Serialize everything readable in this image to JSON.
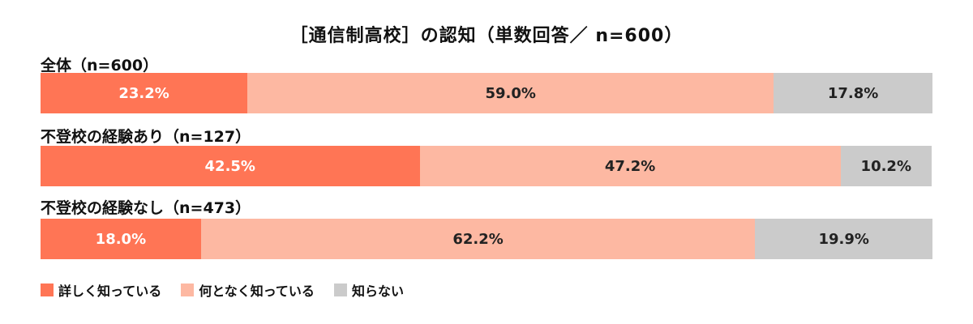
{
  "chart_data": {
    "type": "bar",
    "orientation": "horizontal-stacked-100",
    "title": "［通信制高校］の認知（単数回答／ n=600）",
    "categories": [
      "全体（n=600）",
      "不登校の経験あり（n=127）",
      "不登校の経験なし（n=473）"
    ],
    "series": [
      {
        "name": "詳しく知っている",
        "color": "#FF7555",
        "values": [
          23.2,
          42.5,
          18.0
        ],
        "labels": [
          "23.2%",
          "42.5%",
          "18.0%"
        ]
      },
      {
        "name": "何となく知っている",
        "color": "#FDB8A2",
        "values": [
          59.0,
          47.2,
          62.2
        ],
        "labels": [
          "59.0%",
          "47.2%",
          "62.2%"
        ]
      },
      {
        "name": "知らない",
        "color": "#CBCBCB",
        "values": [
          17.8,
          10.2,
          19.9
        ],
        "labels": [
          "17.8%",
          "10.2%",
          "19.9%"
        ]
      }
    ],
    "legend_position": "bottom-left"
  }
}
